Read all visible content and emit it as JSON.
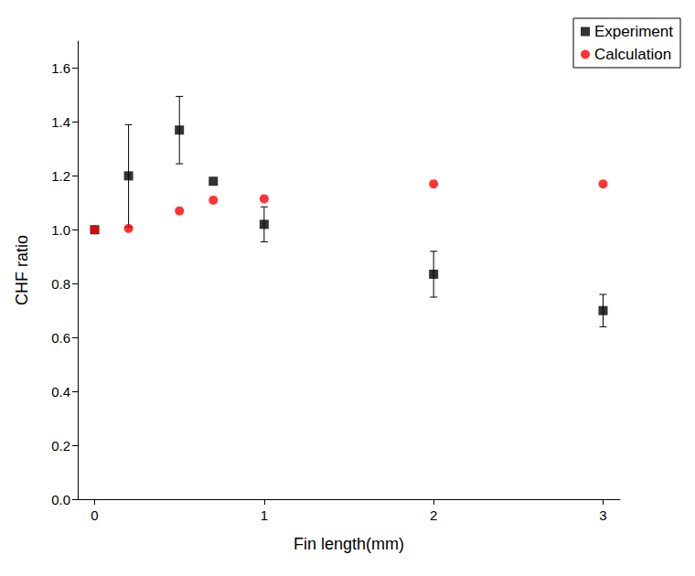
{
  "chart_data": {
    "type": "scatter",
    "x_label": "Fin length(mm)",
    "y_label": "CHF ratio",
    "xlim": [
      -0.1,
      3.1
    ],
    "xticks": [
      0,
      1,
      2,
      3
    ],
    "ylim": [
      0,
      1.7
    ],
    "yticks": [
      {
        "value": 0,
        "label": "0.0"
      },
      {
        "value": 0.2,
        "label": "0.2"
      },
      {
        "value": 0.4,
        "label": "0.4"
      },
      {
        "value": 0.6,
        "label": "0.6"
      },
      {
        "value": 0.8,
        "label": "0.8"
      },
      {
        "value": 1.0,
        "label": "1.0"
      },
      {
        "value": 1.2,
        "label": "1.2"
      },
      {
        "value": 1.4,
        "label": "1.4"
      },
      {
        "value": 1.6,
        "label": "1.6"
      }
    ],
    "grid": false,
    "legend": "top-right",
    "x": [
      0,
      0.2,
      0.5,
      0.7,
      1,
      2,
      3
    ],
    "series": [
      {
        "name": "Experiment",
        "color": "#000000",
        "marker": "square",
        "values": [
          1.0,
          1.2,
          1.37,
          1.18,
          1.02,
          0.835,
          0.7
        ],
        "error": [
          null,
          0.19,
          0.125,
          null,
          0.065,
          0.085,
          0.06
        ]
      },
      {
        "name": "Calculation",
        "color": "#ff0000",
        "marker": "circle",
        "values": [
          1.0,
          1.005,
          1.07,
          1.11,
          1.115,
          1.17,
          1.17
        ]
      }
    ]
  }
}
